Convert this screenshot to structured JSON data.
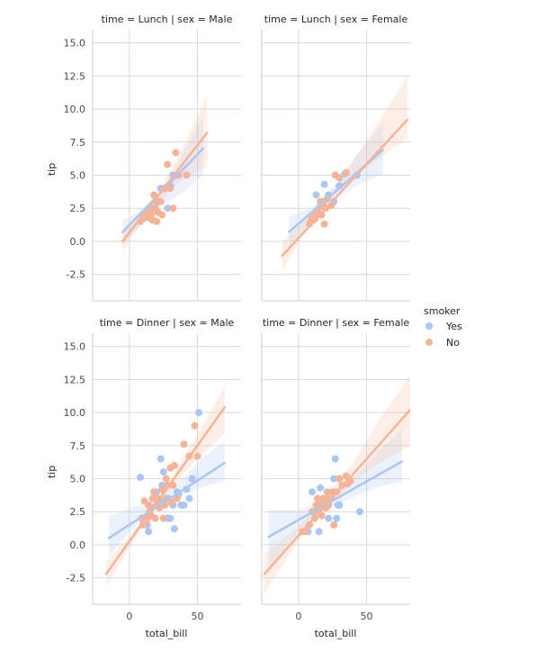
{
  "chart_data": {
    "type": "scatter",
    "facet_row_var": "time",
    "facet_col_var": "sex",
    "xlabel": "total_bill",
    "ylabel": "tip",
    "xlim": [
      -27,
      82
    ],
    "ylim": [
      -4.5,
      16
    ],
    "xticks": [
      "0",
      "50"
    ],
    "yticks": [
      "-2.5",
      "0.0",
      "2.5",
      "5.0",
      "7.5",
      "10.0",
      "12.5",
      "15.0"
    ],
    "grid": true,
    "legend": {
      "title": "smoker",
      "placement": "right",
      "entries": [
        "Yes",
        "No"
      ]
    },
    "colors": {
      "Yes": "#aac6f5",
      "No": "#f5b498"
    },
    "panels": [
      {
        "title": "time = Lunch | sex = Male",
        "row": 0,
        "col": 0,
        "series": [
          {
            "name": "Yes",
            "points": [
              [
                10,
                1.9
              ],
              [
                14,
                2.0
              ],
              [
                16,
                2.3
              ],
              [
                17,
                2.5
              ],
              [
                19,
                2.5
              ],
              [
                20,
                3.0
              ],
              [
                22,
                3.0
              ],
              [
                23,
                4.0
              ],
              [
                26,
                4.0
              ],
              [
                28,
                2.5
              ],
              [
                30,
                4.2
              ],
              [
                32,
                5.0
              ],
              [
                35,
                5.0
              ]
            ],
            "fit": {
              "x0": -5,
              "x1": 54,
              "y0": 0.7,
              "y1": 7.0
            },
            "ci": [
              [
                -5,
                -0.2,
                1.6
              ],
              [
                10,
                1.3,
                2.3
              ],
              [
                20,
                2.5,
                3.1
              ],
              [
                30,
                3.1,
                4.6
              ],
              [
                40,
                3.7,
                6.8
              ],
              [
                54,
                5.0,
                9.5
              ]
            ]
          },
          {
            "name": "No",
            "points": [
              [
                8,
                1.5
              ],
              [
                10,
                1.7
              ],
              [
                12,
                2.0
              ],
              [
                14,
                1.8
              ],
              [
                15,
                2.2
              ],
              [
                16,
                2.0
              ],
              [
                17,
                1.6
              ],
              [
                18,
                3.5
              ],
              [
                19,
                2.5
              ],
              [
                20,
                1.5
              ],
              [
                21,
                2.2
              ],
              [
                22,
                3.0
              ],
              [
                23,
                3.0
              ],
              [
                24,
                2.0
              ],
              [
                26,
                4.0
              ],
              [
                28,
                5.8
              ],
              [
                30,
                4.0
              ],
              [
                32,
                2.5
              ],
              [
                34,
                6.7
              ],
              [
                36,
                5.0
              ],
              [
                42,
                5.0
              ]
            ],
            "fit": {
              "x0": -5,
              "x1": 57,
              "y0": 0.0,
              "y1": 8.2
            },
            "ci": [
              [
                -5,
                -0.7,
                0.8
              ],
              [
                10,
                1.5,
                2.3
              ],
              [
                20,
                2.8,
                3.5
              ],
              [
                30,
                3.8,
                5.3
              ],
              [
                40,
                4.8,
                7.3
              ],
              [
                57,
                5.6,
                11.0
              ]
            ]
          }
        ]
      },
      {
        "title": "time = Lunch | sex = Female",
        "row": 0,
        "col": 1,
        "series": [
          {
            "name": "Yes",
            "points": [
              [
                11,
                2.0
              ],
              [
                13,
                3.5
              ],
              [
                15,
                2.5
              ],
              [
                17,
                3.0
              ],
              [
                19,
                4.3
              ],
              [
                20,
                2.5
              ],
              [
                22,
                3.5
              ],
              [
                26,
                3.0
              ],
              [
                30,
                4.2
              ],
              [
                34,
                5.1
              ],
              [
                43,
                5.0
              ]
            ],
            "fit": {
              "x0": -7,
              "x1": 62,
              "y0": 0.7,
              "y1": 6.9
            },
            "ci": [
              [
                -7,
                -0.4,
                1.8
              ],
              [
                10,
                1.6,
                2.6
              ],
              [
                20,
                2.6,
                3.4
              ],
              [
                30,
                3.4,
                4.6
              ],
              [
                45,
                4.3,
                6.8
              ],
              [
                62,
                5.1,
                9.0
              ]
            ]
          },
          {
            "name": "No",
            "points": [
              [
                8,
                1.3
              ],
              [
                9,
                1.5
              ],
              [
                10,
                1.8
              ],
              [
                11,
                1.6
              ],
              [
                12,
                1.7
              ],
              [
                13,
                2.2
              ],
              [
                14,
                2.0
              ],
              [
                15,
                2.5
              ],
              [
                16,
                3.0
              ],
              [
                17,
                2.0
              ],
              [
                18,
                2.8
              ],
              [
                19,
                1.3
              ],
              [
                20,
                2.5
              ],
              [
                21,
                3.2
              ],
              [
                24,
                2.7
              ],
              [
                27,
                5.0
              ],
              [
                30,
                4.8
              ],
              [
                35,
                5.2
              ]
            ],
            "fit": {
              "x0": -12,
              "x1": 80,
              "y0": -1.1,
              "y1": 9.2
            },
            "ci": [
              [
                -12,
                -2.2,
                0.0
              ],
              [
                0,
                -0.1,
                1.1
              ],
              [
                15,
                2.2,
                2.8
              ],
              [
                30,
                3.8,
                4.6
              ],
              [
                50,
                5.6,
                7.6
              ],
              [
                80,
                7.8,
                12.5
              ]
            ]
          }
        ]
      },
      {
        "title": "time = Dinner | sex = Male",
        "row": 1,
        "col": 0,
        "series": [
          {
            "name": "Yes",
            "points": [
              [
                8,
                5.1
              ],
              [
                11,
                2.0
              ],
              [
                13,
                1.5
              ],
              [
                14,
                1.0
              ],
              [
                15,
                2.5
              ],
              [
                16,
                2.8
              ],
              [
                18,
                3.5
              ],
              [
                20,
                4.0
              ],
              [
                22,
                3.0
              ],
              [
                23,
                6.5
              ],
              [
                24,
                4.5
              ],
              [
                25,
                5.5
              ],
              [
                26,
                3.0
              ],
              [
                27,
                3.5
              ],
              [
                28,
                2.0
              ],
              [
                30,
                2.0
              ],
              [
                32,
                3.0
              ],
              [
                33,
                1.2
              ],
              [
                35,
                4.0
              ],
              [
                36,
                3.8
              ],
              [
                38,
                3.0
              ],
              [
                40,
                3.0
              ],
              [
                42,
                4.2
              ],
              [
                44,
                3.5
              ],
              [
                46,
                5.0
              ],
              [
                51,
                10.0
              ]
            ],
            "fit": {
              "x0": -15,
              "x1": 70,
              "y0": 0.5,
              "y1": 6.2
            },
            "ci": [
              [
                -15,
                -0.9,
                2.2
              ],
              [
                0,
                1.0,
                2.7
              ],
              [
                20,
                2.8,
                3.6
              ],
              [
                40,
                3.8,
                5.1
              ],
              [
                55,
                4.4,
                6.7
              ],
              [
                70,
                4.8,
                7.8
              ]
            ]
          },
          {
            "name": "No",
            "points": [
              [
                9,
                2.0
              ],
              [
                10,
                1.5
              ],
              [
                11,
                3.3
              ],
              [
                12,
                1.8
              ],
              [
                13,
                2.0
              ],
              [
                14,
                3.0
              ],
              [
                15,
                2.5
              ],
              [
                16,
                2.2
              ],
              [
                17,
                3.5
              ],
              [
                18,
                4.0
              ],
              [
                19,
                2.0
              ],
              [
                20,
                3.0
              ],
              [
                21,
                3.5
              ],
              [
                22,
                2.8
              ],
              [
                23,
                3.3
              ],
              [
                24,
                4.2
              ],
              [
                25,
                2.0
              ],
              [
                26,
                3.0
              ],
              [
                27,
                5.0
              ],
              [
                28,
                4.5
              ],
              [
                29,
                3.5
              ],
              [
                30,
                5.8
              ],
              [
                31,
                3.2
              ],
              [
                32,
                4.5
              ],
              [
                33,
                6.0
              ],
              [
                35,
                3.5
              ],
              [
                40,
                7.6
              ],
              [
                44,
                6.7
              ],
              [
                48,
                9.0
              ],
              [
                50,
                6.7
              ]
            ],
            "fit": {
              "x0": -17,
              "x1": 70,
              "y0": -2.2,
              "y1": 10.4
            },
            "ci": [
              [
                -17,
                -3.2,
                -1.2
              ],
              [
                0,
                -0.2,
                0.6
              ],
              [
                20,
                2.8,
                3.4
              ],
              [
                40,
                5.4,
                6.6
              ],
              [
                55,
                7.0,
                9.2
              ],
              [
                70,
                8.4,
                12.0
              ]
            ]
          }
        ]
      },
      {
        "title": "time = Dinner | sex = Female",
        "row": 1,
        "col": 1,
        "series": [
          {
            "name": "Yes",
            "points": [
              [
                7,
                1.0
              ],
              [
                10,
                4.0
              ],
              [
                12,
                2.5
              ],
              [
                14,
                3.0
              ],
              [
                15,
                1.0
              ],
              [
                16,
                4.3
              ],
              [
                18,
                3.0
              ],
              [
                20,
                3.5
              ],
              [
                22,
                2.0
              ],
              [
                24,
                3.5
              ],
              [
                26,
                5.0
              ],
              [
                27,
                6.5
              ],
              [
                28,
                2.0
              ],
              [
                29,
                3.0
              ],
              [
                30,
                3.0
              ],
              [
                45,
                2.5
              ]
            ],
            "fit": {
              "x0": -22,
              "x1": 76,
              "y0": 0.6,
              "y1": 6.3
            },
            "ci": [
              [
                -22,
                -1.8,
                2.6
              ],
              [
                0,
                1.0,
                2.6
              ],
              [
                20,
                2.6,
                3.4
              ],
              [
                40,
                3.6,
                5.0
              ],
              [
                60,
                4.4,
                7.2
              ],
              [
                76,
                4.8,
                8.8
              ]
            ]
          },
          {
            "name": "No",
            "points": [
              [
                3,
                1.0
              ],
              [
                5,
                1.0
              ],
              [
                8,
                1.5
              ],
              [
                10,
                2.5
              ],
              [
                12,
                2.0
              ],
              [
                13,
                3.0
              ],
              [
                14,
                3.5
              ],
              [
                15,
                2.5
              ],
              [
                16,
                3.3
              ],
              [
                17,
                2.2
              ],
              [
                18,
                3.5
              ],
              [
                19,
                3.0
              ],
              [
                20,
                2.8
              ],
              [
                21,
                4.0
              ],
              [
                22,
                3.0
              ],
              [
                23,
                3.5
              ],
              [
                25,
                4.0
              ],
              [
                26,
                1.5
              ],
              [
                28,
                4.0
              ],
              [
                30,
                5.0
              ],
              [
                32,
                4.5
              ],
              [
                35,
                5.2
              ],
              [
                36,
                4.6
              ],
              [
                37,
                5.0
              ],
              [
                38,
                4.8
              ]
            ],
            "fit": {
              "x0": -25,
              "x1": 82,
              "y0": -2.2,
              "y1": 10.2
            },
            "ci": [
              [
                -25,
                -3.7,
                -0.7
              ],
              [
                0,
                0.3,
                1.4
              ],
              [
                20,
                2.8,
                3.6
              ],
              [
                40,
                4.7,
                6.2
              ],
              [
                60,
                6.2,
                9.6
              ],
              [
                82,
                7.5,
                12.8
              ]
            ]
          }
        ]
      }
    ]
  }
}
